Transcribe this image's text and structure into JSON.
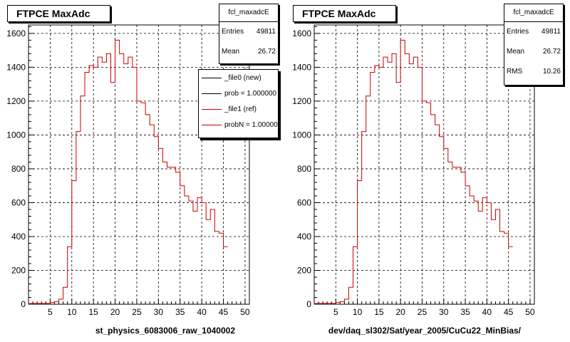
{
  "canvas_footer": "",
  "chart_data": [
    {
      "type": "histogram",
      "title": "FTPCE MaxAdc",
      "xlabel": "st_physics_6083006_raw_1040002",
      "xlim": [
        0,
        51
      ],
      "ylim": [
        0,
        1650
      ],
      "xticks": [
        5,
        10,
        15,
        20,
        25,
        30,
        35,
        40,
        45,
        50
      ],
      "yticks": [
        0,
        200,
        400,
        600,
        800,
        1000,
        1200,
        1400,
        1600
      ],
      "grid": true,
      "bin_width": 1,
      "stats": {
        "name": "fcl_maxadcE",
        "rows": [
          {
            "label": "Entries",
            "value": "49811"
          },
          {
            "label": "Mean",
            "value": "26.72"
          }
        ]
      },
      "legend": {
        "placement": "top-right",
        "entries": [
          {
            "label": "_file0 (new)",
            "color": "#000000"
          },
          {
            "label": "prob = 1.000000",
            "color": "#000000"
          },
          {
            "label": "_file1 (ref)",
            "color": "#cc0000"
          },
          {
            "label": "probN = 1.000000",
            "color": "#cc0000"
          }
        ]
      },
      "series": [
        {
          "color": "#cc0000",
          "values": [
            5,
            5,
            5,
            5,
            5,
            10,
            15,
            30,
            100,
            340,
            730,
            1020,
            1230,
            1370,
            1410,
            1400,
            1460,
            1430,
            1480,
            1310,
            1560,
            1480,
            1420,
            1460,
            1400,
            1200,
            1190,
            1120,
            1060,
            990,
            920,
            840,
            810,
            810,
            780,
            700,
            640,
            610,
            550,
            630,
            600,
            500,
            560,
            430,
            420,
            340
          ]
        }
      ]
    },
    {
      "type": "histogram",
      "title": "FTPCE MaxAdc",
      "xlabel": "dev/daq_sl302/Sat/year_2005/CuCu22_MinBias/",
      "xlim": [
        0,
        51
      ],
      "ylim": [
        0,
        1650
      ],
      "xticks": [
        5,
        10,
        15,
        20,
        25,
        30,
        35,
        40,
        45,
        50
      ],
      "yticks": [
        0,
        200,
        400,
        600,
        800,
        1000,
        1200,
        1400,
        1600
      ],
      "grid": true,
      "bin_width": 1,
      "stats": {
        "name": "fcl_maxadcE",
        "rows": [
          {
            "label": "Entries",
            "value": "49811"
          },
          {
            "label": "Mean",
            "value": "26.72"
          },
          {
            "label": "RMS",
            "value": "10.26"
          }
        ]
      },
      "series": [
        {
          "color": "#cc0000",
          "values": [
            5,
            5,
            5,
            5,
            5,
            10,
            15,
            30,
            100,
            340,
            730,
            1020,
            1230,
            1370,
            1410,
            1400,
            1460,
            1430,
            1480,
            1310,
            1560,
            1480,
            1420,
            1460,
            1400,
            1200,
            1190,
            1120,
            1060,
            990,
            920,
            840,
            810,
            810,
            780,
            700,
            640,
            610,
            550,
            630,
            600,
            500,
            560,
            430,
            420,
            340
          ]
        }
      ]
    }
  ]
}
